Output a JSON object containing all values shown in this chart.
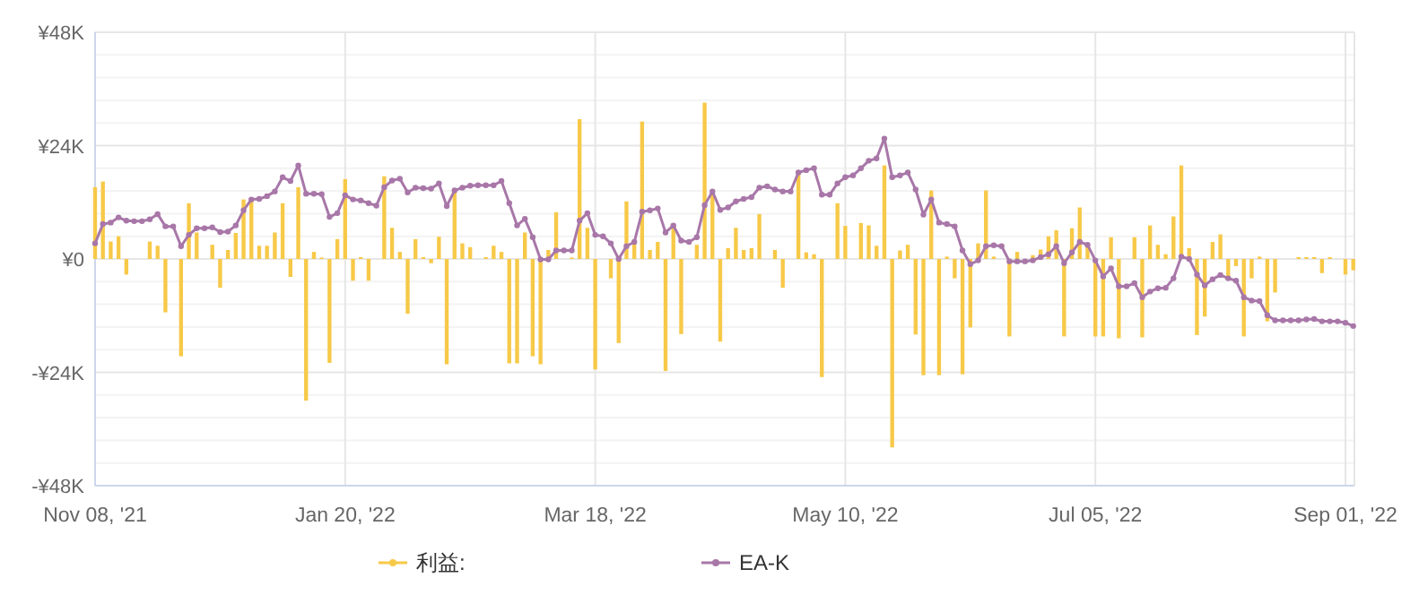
{
  "chart_data": {
    "type": "bar",
    "categories": [
      "Nov 08, '21",
      null,
      null,
      null,
      null,
      null,
      null,
      null,
      null,
      null,
      null,
      null,
      null,
      null,
      null,
      null,
      null,
      null,
      null,
      null,
      null,
      null,
      null,
      null,
      null,
      null,
      null,
      null,
      null,
      null,
      null,
      null,
      "Jan 20, '22",
      null,
      null,
      null,
      null,
      null,
      null,
      null,
      null,
      null,
      null,
      null,
      null,
      null,
      null,
      null,
      null,
      null,
      null,
      null,
      null,
      null,
      null,
      null,
      null,
      null,
      null,
      null,
      null,
      null,
      null,
      null,
      "Mar 18, '22",
      null,
      null,
      null,
      null,
      null,
      null,
      null,
      null,
      null,
      null,
      null,
      null,
      null,
      null,
      null,
      null,
      null,
      null,
      null,
      null,
      null,
      null,
      null,
      null,
      null,
      null,
      null,
      null,
      null,
      null,
      null,
      "May 10, '22",
      null,
      null,
      null,
      null,
      null,
      null,
      null,
      null,
      null,
      null,
      null,
      null,
      null,
      null,
      null,
      null,
      null,
      null,
      null,
      null,
      null,
      null,
      null,
      null,
      null,
      null,
      null,
      null,
      null,
      null,
      null,
      "Jul 05, '22",
      null,
      null,
      null,
      null,
      null,
      null,
      null,
      null,
      null,
      null,
      null,
      null,
      null,
      null,
      null,
      null,
      null,
      null,
      null,
      null,
      null,
      null,
      null,
      null,
      null,
      null,
      null,
      null,
      null,
      null,
      null,
      "Sep 01, '22",
      null
    ],
    "series": [
      {
        "name": "利益:",
        "color": "#f7c948",
        "values": [
          15200,
          16400,
          3700,
          4800,
          -3300,
          0,
          0,
          3700,
          2800,
          -11300,
          0,
          -20600,
          11800,
          5600,
          0,
          3000,
          -6100,
          1900,
          5500,
          12600,
          12600,
          2800,
          2800,
          5600,
          11800,
          -3800,
          15200,
          -30000,
          1500,
          300,
          -22000,
          4200,
          16900,
          -4600,
          400,
          -4600,
          0,
          17500,
          6600,
          1500,
          -11600,
          4200,
          400,
          -900,
          4700,
          -22300,
          14700,
          3300,
          2500,
          0,
          400,
          2800,
          1500,
          -22100,
          -22100,
          5600,
          -20600,
          -22300,
          1900,
          9900,
          0,
          300,
          29600,
          6600,
          -23400,
          0,
          -4100,
          -17800,
          12200,
          4100,
          29100,
          1900,
          3600,
          -23700,
          6700,
          -15900,
          0,
          3000,
          33100,
          14100,
          -17500,
          2300,
          6600,
          1900,
          2300,
          9500,
          0,
          1900,
          -6100,
          0,
          18500,
          1400,
          1000,
          -25000,
          null,
          11800,
          7000,
          0,
          7600,
          7100,
          2800,
          19800,
          -39900,
          1800,
          3000,
          -16000,
          -24600,
          14500,
          -24600,
          500,
          -4100,
          -24400,
          -14500,
          3300,
          14500,
          500,
          0,
          -16400,
          1500,
          null,
          800,
          2000,
          4800,
          6100,
          -16400,
          6500,
          10900,
          2700,
          -16400,
          -16400,
          4600,
          -16800,
          0,
          4600,
          -16600,
          7100,
          3000,
          1000,
          9000,
          19800,
          2300,
          -16100,
          -12200,
          3600,
          5200,
          -3700,
          -1500,
          -16400,
          -4100,
          500,
          -13200,
          -7100,
          0,
          0,
          400,
          400,
          400,
          -3000,
          400,
          0,
          -3300,
          -2400
        ]
      },
      {
        "name": "EA-K",
        "type": "line",
        "color": "#a877a8",
        "marker": "circle",
        "values": [
          3300,
          7400,
          7700,
          8800,
          8100,
          8000,
          8000,
          8400,
          9500,
          6900,
          6900,
          2700,
          5100,
          6500,
          6500,
          6700,
          5700,
          5800,
          7100,
          10300,
          12600,
          12700,
          13300,
          14300,
          17300,
          16500,
          19800,
          13800,
          13800,
          13700,
          8900,
          9700,
          13500,
          12600,
          12400,
          11800,
          11300,
          15200,
          16600,
          17000,
          14100,
          15100,
          15000,
          14900,
          16000,
          11200,
          14500,
          15100,
          15500,
          15600,
          15600,
          15600,
          16500,
          11800,
          7100,
          8500,
          4600,
          -100,
          -100,
          1800,
          1800,
          1800,
          8100,
          9700,
          5100,
          4800,
          3300,
          0,
          2700,
          3600,
          10000,
          10300,
          10700,
          5600,
          7100,
          3900,
          3600,
          4600,
          11400,
          14300,
          10400,
          10900,
          12200,
          12700,
          13100,
          15100,
          15400,
          14700,
          14300,
          14300,
          18300,
          18800,
          19200,
          13600,
          13600,
          16000,
          17300,
          17700,
          19200,
          20800,
          21300,
          25500,
          17300,
          17700,
          18300,
          14700,
          9400,
          12600,
          7700,
          7400,
          6900,
          1800,
          -1100,
          -300,
          2700,
          2900,
          2700,
          -500,
          -500,
          -500,
          -300,
          400,
          1000,
          2700,
          -900,
          1400,
          3600,
          3000,
          -300,
          -3700,
          -2000,
          -5800,
          -5800,
          -5100,
          -8100,
          -6900,
          -6200,
          -6100,
          -4100,
          500,
          0,
          -3300,
          -5600,
          -4300,
          -3400,
          -4100,
          -4600,
          -8100,
          -8800,
          -8900,
          -11900,
          -13000,
          -13000,
          -13000,
          -13000,
          -12800,
          -12700,
          -13200,
          -13200,
          -13200,
          -13500,
          -14200
        ]
      }
    ],
    "ylim": [
      -48000,
      48000
    ],
    "yticks": [
      {
        "value": 48000,
        "label": "¥48K"
      },
      {
        "value": 24000,
        "label": "¥24K"
      },
      {
        "value": 0,
        "label": "¥0"
      },
      {
        "value": -24000,
        "label": "-¥24K"
      },
      {
        "value": -48000,
        "label": "-¥48K"
      }
    ],
    "grid": true,
    "legend": "bottom"
  }
}
